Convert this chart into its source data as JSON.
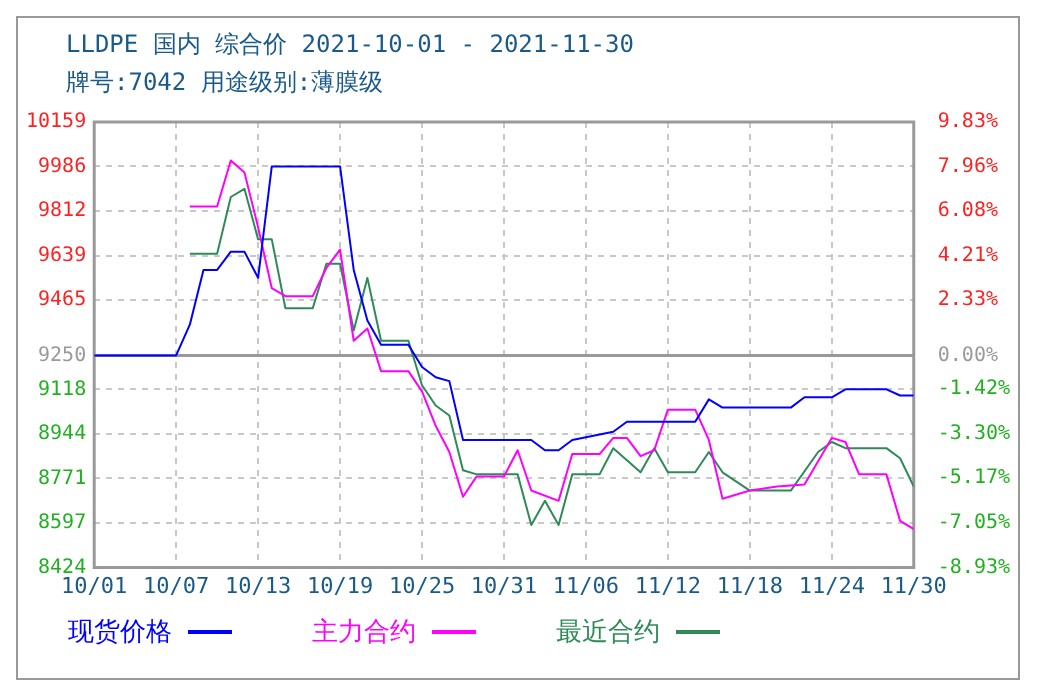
{
  "chart_data": {
    "type": "line",
    "title": "LLDPE 国内 综合价 2021-10-01 - 2021-11-30",
    "subtitle": "牌号:7042 用途级别:薄膜级",
    "series": [
      {
        "name": "现货价格",
        "color": "#0000ff",
        "x": [
          "2021-10-01",
          "2021-10-07",
          "2021-10-08",
          "2021-10-09",
          "2021-10-10",
          "2021-10-11",
          "2021-10-12",
          "2021-10-13",
          "2021-10-14",
          "2021-10-19",
          "2021-10-20",
          "2021-10-21",
          "2021-10-22",
          "2021-10-24",
          "2021-10-25",
          "2021-10-26",
          "2021-10-27",
          "2021-10-28",
          "2021-11-02",
          "2021-11-03",
          "2021-11-04",
          "2021-11-05",
          "2021-11-08",
          "2021-11-09",
          "2021-11-14",
          "2021-11-15",
          "2021-11-16",
          "2021-11-21",
          "2021-11-22",
          "2021-11-24",
          "2021-11-25",
          "2021-11-28",
          "2021-11-29",
          "2021-11-30"
        ],
        "values": [
          9250,
          9250,
          9370,
          9583,
          9583,
          9654,
          9654,
          9552,
          9986,
          9986,
          9583,
          9386,
          9292,
          9292,
          9205,
          9165,
          9150,
          8921,
          8921,
          8881,
          8881,
          8921,
          8953,
          8992,
          8992,
          9079,
          9047,
          9047,
          9087,
          9087,
          9118,
          9118,
          9094,
          9094
        ]
      },
      {
        "name": "主力合约",
        "color": "#ff00ff",
        "x": [
          "2021-10-08",
          "2021-10-10",
          "2021-10-11",
          "2021-10-12",
          "2021-10-13",
          "2021-10-14",
          "2021-10-15",
          "2021-10-17",
          "2021-10-18",
          "2021-10-19",
          "2021-10-20",
          "2021-10-21",
          "2021-10-22",
          "2021-10-24",
          "2021-10-25",
          "2021-10-26",
          "2021-10-27",
          "2021-10-28",
          "2021-10-29",
          "2021-10-31",
          "2021-11-01",
          "2021-11-02",
          "2021-11-04",
          "2021-11-05",
          "2021-11-07",
          "2021-11-08",
          "2021-11-09",
          "2021-11-10",
          "2021-11-11",
          "2021-11-12",
          "2021-11-14",
          "2021-11-15",
          "2021-11-16",
          "2021-11-18",
          "2021-11-20",
          "2021-11-22",
          "2021-11-24",
          "2021-11-25",
          "2021-11-26",
          "2021-11-28",
          "2021-11-29",
          "2021-11-30"
        ],
        "values": [
          9830,
          9830,
          10009,
          9962,
          9749,
          9512,
          9481,
          9481,
          9591,
          9662,
          9307,
          9355,
          9189,
          9189,
          9110,
          8976,
          8874,
          8700,
          8779,
          8779,
          8881,
          8724,
          8684,
          8866,
          8866,
          8929,
          8929,
          8858,
          8881,
          9039,
          9039,
          8921,
          8692,
          8724,
          8740,
          8748,
          8929,
          8913,
          8787,
          8787,
          8606,
          8574
        ]
      },
      {
        "name": "最近合约",
        "color": "#2e8b57",
        "x": [
          "2021-10-08",
          "2021-10-10",
          "2021-10-11",
          "2021-10-12",
          "2021-10-13",
          "2021-10-14",
          "2021-10-15",
          "2021-10-17",
          "2021-10-18",
          "2021-10-19",
          "2021-10-20",
          "2021-10-21",
          "2021-10-22",
          "2021-10-24",
          "2021-10-25",
          "2021-10-26",
          "2021-10-27",
          "2021-10-28",
          "2021-10-29",
          "2021-11-01",
          "2021-11-02",
          "2021-11-03",
          "2021-11-04",
          "2021-11-05",
          "2021-11-07",
          "2021-11-08",
          "2021-11-10",
          "2021-11-11",
          "2021-11-12",
          "2021-11-14",
          "2021-11-15",
          "2021-11-16",
          "2021-11-18",
          "2021-11-21",
          "2021-11-23",
          "2021-11-24",
          "2021-11-25",
          "2021-11-28",
          "2021-11-29",
          "2021-11-30"
        ],
        "values": [
          9646,
          9646,
          9867,
          9899,
          9702,
          9702,
          9434,
          9434,
          9607,
          9607,
          9347,
          9552,
          9307,
          9307,
          9134,
          9055,
          9016,
          8803,
          8787,
          8787,
          8590,
          8684,
          8590,
          8787,
          8787,
          8889,
          8795,
          8889,
          8795,
          8795,
          8874,
          8795,
          8724,
          8724,
          8874,
          8913,
          8889,
          8889,
          8850,
          8740
        ]
      }
    ],
    "xlim": [
      "2021-10-01",
      "2021-11-30"
    ],
    "xticks": [
      {
        "value": "2021-10-01",
        "label": "10/01"
      },
      {
        "value": "2021-10-07",
        "label": "10/07"
      },
      {
        "value": "2021-10-13",
        "label": "10/13"
      },
      {
        "value": "2021-10-19",
        "label": "10/19"
      },
      {
        "value": "2021-10-25",
        "label": "10/25"
      },
      {
        "value": "2021-10-31",
        "label": "10/31"
      },
      {
        "value": "2021-11-06",
        "label": "11/06"
      },
      {
        "value": "2021-11-12",
        "label": "11/12"
      },
      {
        "value": "2021-11-18",
        "label": "11/18"
      },
      {
        "value": "2021-11-24",
        "label": "11/24"
      },
      {
        "value": "2021-11-30",
        "label": "11/30"
      }
    ],
    "ylim": [
      8424,
      10159
    ],
    "yticks": [
      8424,
      8597,
      8771,
      8944,
      9118,
      9250,
      9465,
      9639,
      9812,
      9986,
      10159
    ],
    "y2lim": [
      -8.93,
      9.83
    ],
    "y2ticks": [
      {
        "value": -8.93,
        "label": "-8.93%"
      },
      {
        "value": -7.05,
        "label": "-7.05%"
      },
      {
        "value": -5.17,
        "label": "-5.17%"
      },
      {
        "value": -3.3,
        "label": "-3.30%"
      },
      {
        "value": -1.42,
        "label": "-1.42%"
      },
      {
        "value": 0,
        "label": "0.00%"
      },
      {
        "value": 2.33,
        "label": "2.33%"
      },
      {
        "value": 4.21,
        "label": "4.21%"
      },
      {
        "value": 6.08,
        "label": "6.08%"
      },
      {
        "value": 7.96,
        "label": "7.96%"
      },
      {
        "value": 9.83,
        "label": "9.83%"
      }
    ],
    "ref_lines": [
      {
        "axis": "y2",
        "value": 0,
        "color": "#999999"
      }
    ],
    "grid": true,
    "legend": "bottom",
    "marker": "none",
    "line_style": "solid"
  }
}
